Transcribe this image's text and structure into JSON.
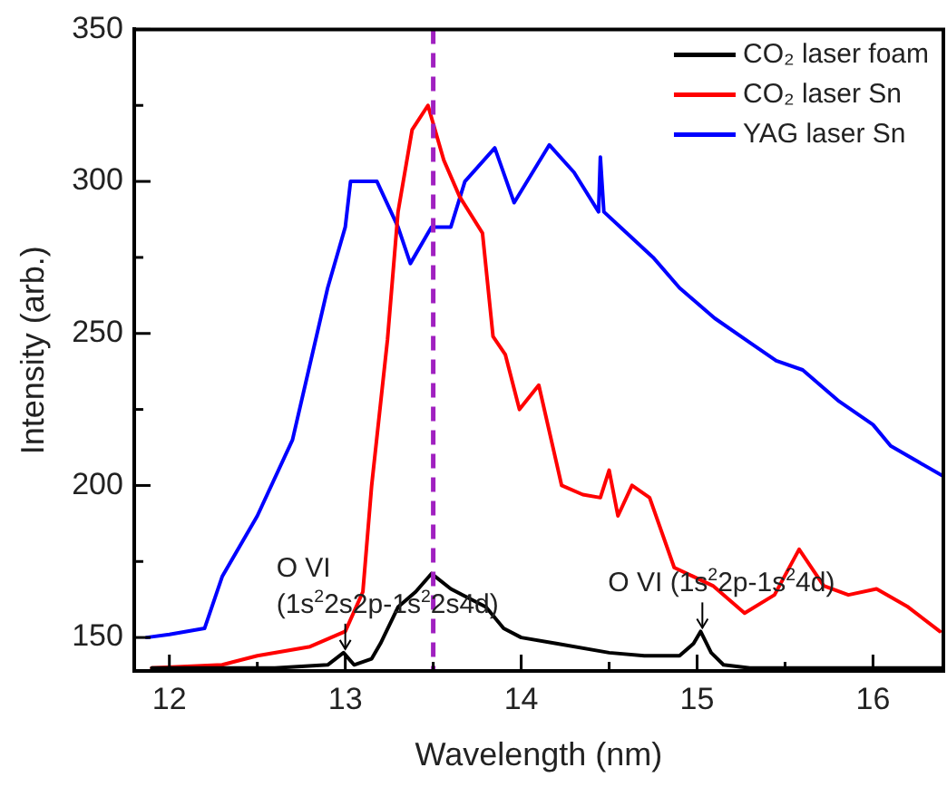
{
  "chart_data": {
    "type": "line",
    "xlabel": "Wavelength (nm)",
    "ylabel": "Intensity (arb.)",
    "xlim": [
      11.8,
      16.4
    ],
    "xticks": [
      12,
      {
        "value": 12.5,
        "label": null
      },
      13,
      {
        "value": 13.5,
        "label": null
      },
      14,
      {
        "value": 14.5,
        "label": null
      },
      15,
      {
        "value": 15.5,
        "label": null
      },
      16
    ],
    "ylim": [
      139,
      350
    ],
    "yticks": [
      150,
      {
        "value": 175,
        "label": null
      },
      200,
      {
        "value": 225,
        "label": null
      },
      250,
      {
        "value": 275,
        "label": null
      },
      300,
      {
        "value": 325,
        "label": null
      },
      350
    ],
    "grid": false,
    "legend": "top right",
    "marker": "none",
    "line_style": "solid",
    "ref_lines": [
      {
        "axis": "x",
        "value": 13.5,
        "color": "#a020c0",
        "line_style": "dashed"
      }
    ],
    "annotations": [
      {
        "text": "O VI\n(1s$^{2}$2s2p-1s$^{2}$2s4d)",
        "x": 13.0,
        "y": 145
      },
      {
        "text": "O VI (1s$^{2}$2p-1s$^{2}$4d)",
        "x": 15.03,
        "y": 152
      }
    ],
    "series": [
      {
        "name": "CO₂ laser foam",
        "color": "#000000",
        "x": [
          11.9,
          12.3,
          12.6,
          12.9,
          12.99,
          13.05,
          13.15,
          13.2,
          13.3,
          13.4,
          13.49,
          13.6,
          13.7,
          13.8,
          13.9,
          14.0,
          14.2,
          14.5,
          14.7,
          14.9,
          14.98,
          15.02,
          15.08,
          15.15,
          15.3,
          15.6,
          16.0,
          16.4
        ],
        "values": [
          140,
          140,
          140,
          141,
          145,
          141,
          143,
          148,
          160,
          165,
          171,
          166,
          163,
          160,
          153,
          150,
          148,
          145,
          144,
          144,
          148,
          152,
          145,
          141,
          140,
          140,
          140,
          140
        ]
      },
      {
        "name": "CO₂ laser Sn",
        "color": "#ff0000",
        "x": [
          11.9,
          12.3,
          12.5,
          12.8,
          13.0,
          13.1,
          13.15,
          13.24,
          13.3,
          13.38,
          13.47,
          13.56,
          13.65,
          13.78,
          13.84,
          13.91,
          13.99,
          14.1,
          14.23,
          14.35,
          14.45,
          14.5,
          14.55,
          14.63,
          14.73,
          14.87,
          15.09,
          15.27,
          15.44,
          15.58,
          15.72,
          15.86,
          16.02,
          16.2,
          16.38
        ],
        "values": [
          140,
          141,
          144,
          147,
          152,
          165,
          200,
          248,
          290,
          317,
          325,
          307,
          295,
          283,
          249,
          243,
          225,
          233,
          200,
          197,
          196,
          205,
          190,
          200,
          196,
          173,
          167,
          158,
          164,
          179,
          167,
          164,
          166,
          160,
          152
        ]
      },
      {
        "name": "YAG laser Sn",
        "color": "#0000ff",
        "x": [
          11.87,
          12.0,
          12.2,
          12.3,
          12.5,
          12.7,
          12.8,
          12.9,
          13.0,
          13.03,
          13.18,
          13.3,
          13.37,
          13.49,
          13.6,
          13.68,
          13.85,
          13.96,
          14.16,
          14.3,
          14.44,
          14.45,
          14.47,
          14.6,
          14.75,
          14.9,
          15.1,
          15.3,
          15.45,
          15.6,
          15.8,
          16.0,
          16.1,
          16.25,
          16.4
        ],
        "values": [
          150,
          151,
          153,
          170,
          190,
          215,
          240,
          265,
          285,
          300,
          300,
          285,
          273,
          285,
          285,
          300,
          311,
          293,
          312,
          303,
          290,
          308,
          290,
          283,
          275,
          265,
          255,
          247,
          241,
          238,
          228,
          220,
          213,
          208,
          203
        ]
      }
    ]
  }
}
